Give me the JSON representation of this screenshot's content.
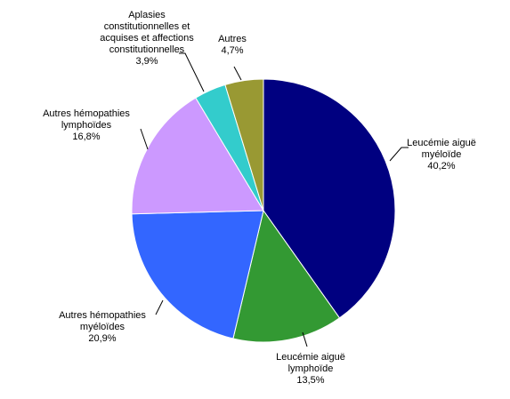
{
  "chart_data": {
    "type": "pie",
    "title": "",
    "start_angle_deg": 0,
    "direction": "clockwise",
    "slices": [
      {
        "label_lines": [
          "Leucémie aiguë",
          "myéloïde"
        ],
        "value_text": "40,2%",
        "value": 40.2,
        "color": "#000080"
      },
      {
        "label_lines": [
          "Leucémie aiguë",
          "lymphoïde"
        ],
        "value_text": "13,5%",
        "value": 13.5,
        "color": "#339933"
      },
      {
        "label_lines": [
          "Autres hémopathies",
          "myéloïdes"
        ],
        "value_text": "20,9%",
        "value": 20.9,
        "color": "#3366FF"
      },
      {
        "label_lines": [
          "Autres hémopathies",
          "lymphoïdes"
        ],
        "value_text": "16,8%",
        "value": 16.8,
        "color": "#CC99FF"
      },
      {
        "label_lines": [
          "Aplasies",
          "constitutionnelles et",
          "acquises et affections",
          "constitutionnelles"
        ],
        "value_text": "3,9%",
        "value": 3.9,
        "color": "#33CCCC"
      },
      {
        "label_lines": [
          "Autres"
        ],
        "value_text": "4,7%",
        "value": 4.7,
        "color": "#999933"
      }
    ]
  }
}
